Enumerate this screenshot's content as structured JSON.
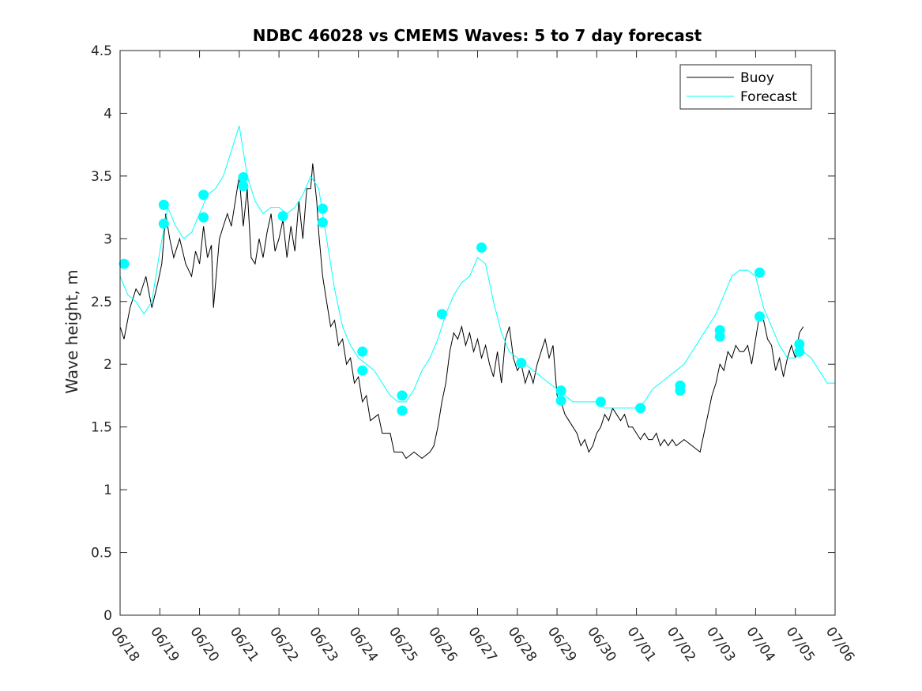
{
  "chart_data": {
    "type": "line",
    "title": "NDBC 46028 vs CMEMS Waves: 5 to 7 day forecast",
    "xlabel": "",
    "ylabel": "Wave height, m",
    "xlim": [
      0,
      18
    ],
    "ylim": [
      0,
      4.5
    ],
    "x_unit": "days since 06/18",
    "xticks": [
      0,
      1,
      2,
      3,
      4,
      5,
      6,
      7,
      8,
      9,
      10,
      11,
      12,
      13,
      14,
      15,
      16,
      17,
      18
    ],
    "xtick_labels": [
      "06/18",
      "06/19",
      "06/20",
      "06/21",
      "06/22",
      "06/23",
      "06/24",
      "06/25",
      "06/26",
      "06/27",
      "06/28",
      "06/29",
      "06/30",
      "07/01",
      "07/02",
      "07/03",
      "07/04",
      "07/05",
      "07/06"
    ],
    "yticks": [
      0,
      0.5,
      1,
      1.5,
      2,
      2.5,
      3,
      3.5,
      4,
      4.5
    ],
    "ytick_labels": [
      "0",
      "0.5",
      "1",
      "1.5",
      "2",
      "2.5",
      "3",
      "3.5",
      "4",
      "4.5"
    ],
    "grid": false,
    "legend_position": "top-right",
    "colors": {
      "buoy": "#000000",
      "forecast": "#00ffff"
    },
    "series": [
      {
        "name": "Buoy",
        "color": "#000000",
        "points": [
          [
            0,
            2.3
          ],
          [
            0.1,
            2.2
          ],
          [
            0.25,
            2.45
          ],
          [
            0.4,
            2.6
          ],
          [
            0.5,
            2.55
          ],
          [
            0.65,
            2.7
          ],
          [
            0.8,
            2.45
          ],
          [
            0.95,
            2.65
          ],
          [
            1.05,
            2.8
          ],
          [
            1.15,
            3.2
          ],
          [
            1.25,
            3.0
          ],
          [
            1.35,
            2.85
          ],
          [
            1.5,
            3.0
          ],
          [
            1.65,
            2.8
          ],
          [
            1.8,
            2.7
          ],
          [
            1.9,
            2.9
          ],
          [
            2.0,
            2.8
          ],
          [
            2.1,
            3.1
          ],
          [
            2.2,
            2.85
          ],
          [
            2.3,
            2.95
          ],
          [
            2.35,
            2.45
          ],
          [
            2.5,
            3.0
          ],
          [
            2.6,
            3.1
          ],
          [
            2.7,
            3.2
          ],
          [
            2.8,
            3.1
          ],
          [
            2.9,
            3.3
          ],
          [
            3.0,
            3.5
          ],
          [
            3.1,
            3.1
          ],
          [
            3.2,
            3.4
          ],
          [
            3.3,
            2.85
          ],
          [
            3.4,
            2.8
          ],
          [
            3.5,
            3.0
          ],
          [
            3.6,
            2.85
          ],
          [
            3.7,
            3.05
          ],
          [
            3.8,
            3.2
          ],
          [
            3.9,
            2.9
          ],
          [
            4.0,
            3.0
          ],
          [
            4.1,
            3.15
          ],
          [
            4.2,
            2.85
          ],
          [
            4.3,
            3.1
          ],
          [
            4.4,
            2.9
          ],
          [
            4.5,
            3.3
          ],
          [
            4.6,
            3.0
          ],
          [
            4.7,
            3.4
          ],
          [
            4.8,
            3.4
          ],
          [
            4.85,
            3.6
          ],
          [
            4.95,
            3.3
          ],
          [
            5.0,
            3.05
          ],
          [
            5.1,
            2.7
          ],
          [
            5.2,
            2.5
          ],
          [
            5.3,
            2.3
          ],
          [
            5.4,
            2.35
          ],
          [
            5.5,
            2.15
          ],
          [
            5.6,
            2.2
          ],
          [
            5.7,
            2.0
          ],
          [
            5.8,
            2.05
          ],
          [
            5.9,
            1.85
          ],
          [
            6.0,
            1.9
          ],
          [
            6.1,
            1.7
          ],
          [
            6.2,
            1.75
          ],
          [
            6.3,
            1.55
          ],
          [
            6.5,
            1.6
          ],
          [
            6.6,
            1.45
          ],
          [
            6.8,
            1.45
          ],
          [
            6.9,
            1.3
          ],
          [
            7.1,
            1.3
          ],
          [
            7.2,
            1.25
          ],
          [
            7.4,
            1.3
          ],
          [
            7.6,
            1.25
          ],
          [
            7.8,
            1.3
          ],
          [
            7.9,
            1.35
          ],
          [
            8.0,
            1.5
          ],
          [
            8.1,
            1.7
          ],
          [
            8.2,
            1.85
          ],
          [
            8.3,
            2.1
          ],
          [
            8.4,
            2.25
          ],
          [
            8.5,
            2.2
          ],
          [
            8.6,
            2.3
          ],
          [
            8.7,
            2.15
          ],
          [
            8.8,
            2.25
          ],
          [
            8.9,
            2.1
          ],
          [
            9.0,
            2.2
          ],
          [
            9.1,
            2.05
          ],
          [
            9.2,
            2.15
          ],
          [
            9.3,
            2.0
          ],
          [
            9.4,
            1.9
          ],
          [
            9.5,
            2.1
          ],
          [
            9.6,
            1.85
          ],
          [
            9.7,
            2.2
          ],
          [
            9.8,
            2.3
          ],
          [
            9.9,
            2.05
          ],
          [
            10.0,
            1.95
          ],
          [
            10.1,
            2.0
          ],
          [
            10.2,
            1.85
          ],
          [
            10.3,
            1.95
          ],
          [
            10.4,
            1.85
          ],
          [
            10.5,
            2.0
          ],
          [
            10.6,
            2.1
          ],
          [
            10.7,
            2.2
          ],
          [
            10.8,
            2.05
          ],
          [
            10.9,
            2.15
          ],
          [
            11.0,
            1.75
          ],
          [
            11.1,
            1.7
          ],
          [
            11.2,
            1.6
          ],
          [
            11.3,
            1.55
          ],
          [
            11.4,
            1.5
          ],
          [
            11.5,
            1.45
          ],
          [
            11.6,
            1.35
          ],
          [
            11.7,
            1.4
          ],
          [
            11.8,
            1.3
          ],
          [
            11.9,
            1.35
          ],
          [
            12.0,
            1.45
          ],
          [
            12.1,
            1.5
          ],
          [
            12.2,
            1.6
          ],
          [
            12.3,
            1.55
          ],
          [
            12.4,
            1.65
          ],
          [
            12.5,
            1.6
          ],
          [
            12.6,
            1.55
          ],
          [
            12.7,
            1.6
          ],
          [
            12.8,
            1.5
          ],
          [
            12.9,
            1.5
          ],
          [
            13.0,
            1.45
          ],
          [
            13.1,
            1.4
          ],
          [
            13.2,
            1.45
          ],
          [
            13.3,
            1.4
          ],
          [
            13.4,
            1.4
          ],
          [
            13.5,
            1.45
          ],
          [
            13.6,
            1.35
          ],
          [
            13.7,
            1.4
          ],
          [
            13.8,
            1.35
          ],
          [
            13.9,
            1.4
          ],
          [
            14.0,
            1.35
          ],
          [
            14.2,
            1.4
          ],
          [
            14.4,
            1.35
          ],
          [
            14.6,
            1.3
          ],
          [
            14.8,
            1.6
          ],
          [
            14.9,
            1.75
          ],
          [
            15.0,
            1.85
          ],
          [
            15.1,
            2.0
          ],
          [
            15.2,
            1.95
          ],
          [
            15.3,
            2.1
          ],
          [
            15.4,
            2.05
          ],
          [
            15.5,
            2.15
          ],
          [
            15.6,
            2.1
          ],
          [
            15.7,
            2.1
          ],
          [
            15.8,
            2.15
          ],
          [
            15.9,
            2.0
          ],
          [
            16.0,
            2.2
          ],
          [
            16.1,
            2.4
          ],
          [
            16.2,
            2.35
          ],
          [
            16.3,
            2.2
          ],
          [
            16.4,
            2.15
          ],
          [
            16.5,
            1.95
          ],
          [
            16.6,
            2.05
          ],
          [
            16.7,
            1.9
          ],
          [
            16.8,
            2.05
          ],
          [
            16.9,
            2.15
          ],
          [
            17.0,
            2.05
          ],
          [
            17.1,
            2.25
          ],
          [
            17.2,
            2.3
          ]
        ]
      },
      {
        "name": "Forecast",
        "color": "#00ffff",
        "points": [
          [
            0.0,
            2.7
          ],
          [
            0.2,
            2.55
          ],
          [
            0.4,
            2.5
          ],
          [
            0.6,
            2.4
          ],
          [
            0.8,
            2.5
          ],
          [
            1.0,
            2.9
          ],
          [
            1.2,
            3.25
          ],
          [
            1.4,
            3.1
          ],
          [
            1.6,
            3.0
          ],
          [
            1.8,
            3.05
          ],
          [
            2.0,
            3.2
          ],
          [
            2.2,
            3.35
          ],
          [
            2.4,
            3.4
          ],
          [
            2.6,
            3.5
          ],
          [
            2.8,
            3.7
          ],
          [
            3.0,
            3.9
          ],
          [
            3.2,
            3.5
          ],
          [
            3.4,
            3.3
          ],
          [
            3.6,
            3.2
          ],
          [
            3.8,
            3.25
          ],
          [
            4.0,
            3.25
          ],
          [
            4.2,
            3.2
          ],
          [
            4.4,
            3.25
          ],
          [
            4.6,
            3.35
          ],
          [
            4.8,
            3.5
          ],
          [
            5.0,
            3.4
          ],
          [
            5.2,
            3.0
          ],
          [
            5.4,
            2.6
          ],
          [
            5.6,
            2.3
          ],
          [
            5.8,
            2.15
          ],
          [
            6.0,
            2.05
          ],
          [
            6.2,
            2.0
          ],
          [
            6.4,
            1.95
          ],
          [
            6.6,
            1.85
          ],
          [
            6.8,
            1.75
          ],
          [
            7.0,
            1.7
          ],
          [
            7.2,
            1.7
          ],
          [
            7.4,
            1.8
          ],
          [
            7.6,
            1.95
          ],
          [
            7.8,
            2.05
          ],
          [
            8.0,
            2.2
          ],
          [
            8.2,
            2.4
          ],
          [
            8.4,
            2.55
          ],
          [
            8.6,
            2.65
          ],
          [
            8.8,
            2.7
          ],
          [
            9.0,
            2.85
          ],
          [
            9.2,
            2.8
          ],
          [
            9.4,
            2.5
          ],
          [
            9.6,
            2.25
          ],
          [
            9.8,
            2.1
          ],
          [
            10.0,
            2.05
          ],
          [
            10.2,
            2.0
          ],
          [
            10.4,
            1.95
          ],
          [
            10.6,
            1.9
          ],
          [
            10.8,
            1.85
          ],
          [
            11.0,
            1.8
          ],
          [
            11.2,
            1.75
          ],
          [
            11.4,
            1.7
          ],
          [
            11.6,
            1.7
          ],
          [
            11.8,
            1.7
          ],
          [
            12.0,
            1.7
          ],
          [
            12.2,
            1.65
          ],
          [
            12.4,
            1.65
          ],
          [
            12.6,
            1.65
          ],
          [
            12.8,
            1.65
          ],
          [
            13.0,
            1.65
          ],
          [
            13.2,
            1.7
          ],
          [
            13.4,
            1.8
          ],
          [
            13.6,
            1.85
          ],
          [
            13.8,
            1.9
          ],
          [
            14.0,
            1.95
          ],
          [
            14.2,
            2.0
          ],
          [
            14.4,
            2.1
          ],
          [
            14.6,
            2.2
          ],
          [
            14.8,
            2.3
          ],
          [
            15.0,
            2.4
          ],
          [
            15.2,
            2.55
          ],
          [
            15.4,
            2.7
          ],
          [
            15.6,
            2.75
          ],
          [
            15.8,
            2.75
          ],
          [
            16.0,
            2.7
          ],
          [
            16.2,
            2.45
          ],
          [
            16.4,
            2.3
          ],
          [
            16.6,
            2.15
          ],
          [
            16.8,
            2.05
          ],
          [
            17.0,
            2.05
          ],
          [
            17.2,
            2.1
          ],
          [
            17.4,
            2.05
          ],
          [
            17.6,
            1.95
          ],
          [
            17.8,
            1.85
          ],
          [
            18.0,
            1.85
          ]
        ]
      }
    ],
    "forecast_markers": [
      [
        0.1,
        2.8
      ],
      [
        1.1,
        3.27
      ],
      [
        1.1,
        3.12
      ],
      [
        2.1,
        3.35
      ],
      [
        2.1,
        3.17
      ],
      [
        3.1,
        3.49
      ],
      [
        3.1,
        3.42
      ],
      [
        4.1,
        3.18
      ],
      [
        5.1,
        3.24
      ],
      [
        5.1,
        3.13
      ],
      [
        6.1,
        2.1
      ],
      [
        6.1,
        1.95
      ],
      [
        7.1,
        1.75
      ],
      [
        7.1,
        1.63
      ],
      [
        8.1,
        2.4
      ],
      [
        9.1,
        2.93
      ],
      [
        10.1,
        2.01
      ],
      [
        11.1,
        1.79
      ],
      [
        11.1,
        1.71
      ],
      [
        12.1,
        1.7
      ],
      [
        13.1,
        1.65
      ],
      [
        14.1,
        1.83
      ],
      [
        14.1,
        1.79
      ],
      [
        15.1,
        2.27
      ],
      [
        15.1,
        2.22
      ],
      [
        16.1,
        2.73
      ],
      [
        16.1,
        2.38
      ],
      [
        17.1,
        2.16
      ],
      [
        17.1,
        2.1
      ]
    ]
  }
}
